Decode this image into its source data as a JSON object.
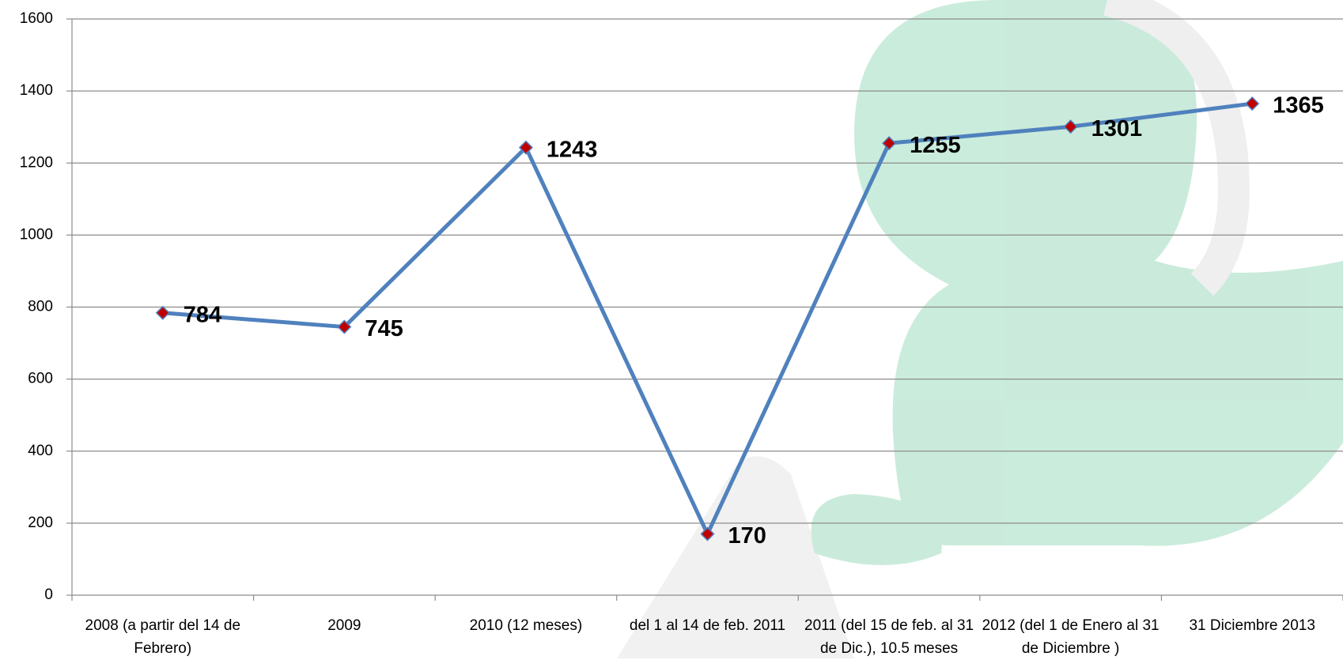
{
  "chart_data": {
    "type": "line",
    "categories": [
      "2008 (a partir del 14 de Febrero)",
      "2009",
      "2010 (12 meses)",
      "del 1 al 14 de feb. 2011",
      "2011 (del 15 de feb. al 31 de Dic.), 10.5 meses",
      "2012 (del 1 de Enero al 31 de Diciembre )",
      "31 Diciembre 2013"
    ],
    "values": [
      784,
      745,
      1243,
      170,
      1255,
      1301,
      1365
    ],
    "color": "#4f81bd",
    "marker_color": "#c00000",
    "ylim": [
      0,
      1600
    ],
    "yticks": [
      0,
      200,
      400,
      600,
      800,
      1000,
      1200,
      1400,
      1600
    ],
    "grid": true
  }
}
